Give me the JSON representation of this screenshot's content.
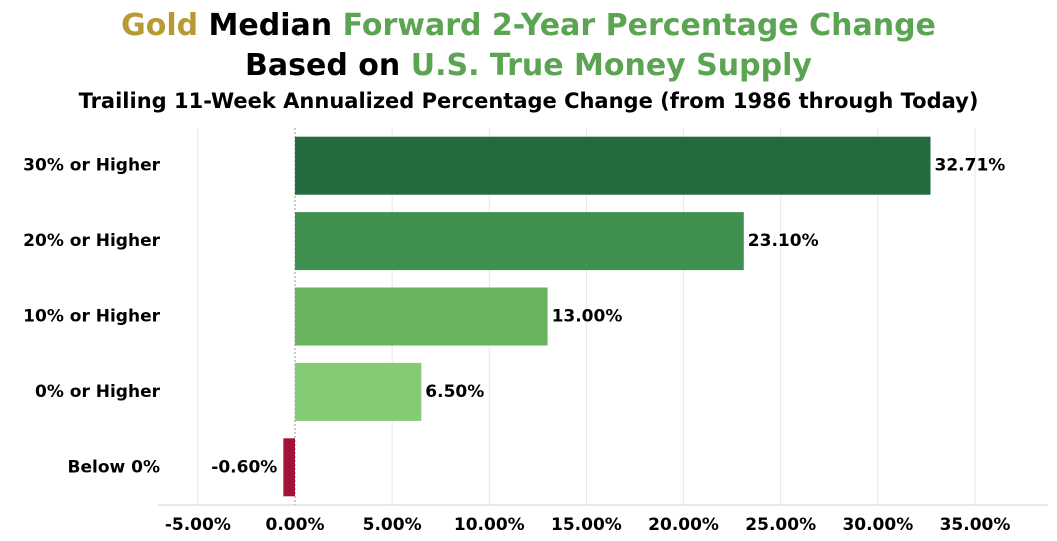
{
  "title": {
    "line1": {
      "part1": "Gold",
      "part2": "Median",
      "part3": "Forward 2-Year Percentage Change"
    },
    "line2": {
      "part1": "Based on",
      "part2": "U.S. True Money Supply"
    },
    "line3": "Trailing 11-Week Annualized Percentage Change (from 1986 through Today)"
  },
  "colors": {
    "gold": "#B89A34",
    "green": "#5AA452",
    "black": "#000000"
  },
  "chart_data": {
    "type": "bar",
    "orientation": "horizontal",
    "categories": [
      "30% or Higher",
      "20% or Higher",
      "10% or Higher",
      "0% or Higher",
      "Below 0%"
    ],
    "values": [
      32.71,
      23.1,
      13.0,
      6.5,
      -0.6
    ],
    "value_labels": [
      "32.71%",
      "23.10%",
      "13.00%",
      "6.50%",
      "-0.60%"
    ],
    "bar_colors": [
      "#236B3F",
      "#3F9150",
      "#69B35F",
      "#85CA75",
      "#A51237"
    ],
    "xlim": [
      -7.5,
      38.5
    ],
    "xticks": [
      -5,
      0,
      5,
      10,
      15,
      20,
      25,
      30,
      35
    ],
    "xtick_labels": [
      "-5.00%",
      "0.00%",
      "5.00%",
      "10.00%",
      "15.00%",
      "20.00%",
      "25.00%",
      "30.00%",
      "35.00%"
    ],
    "xlabel": "",
    "ylabel": "",
    "grid": true,
    "legend": "none"
  }
}
